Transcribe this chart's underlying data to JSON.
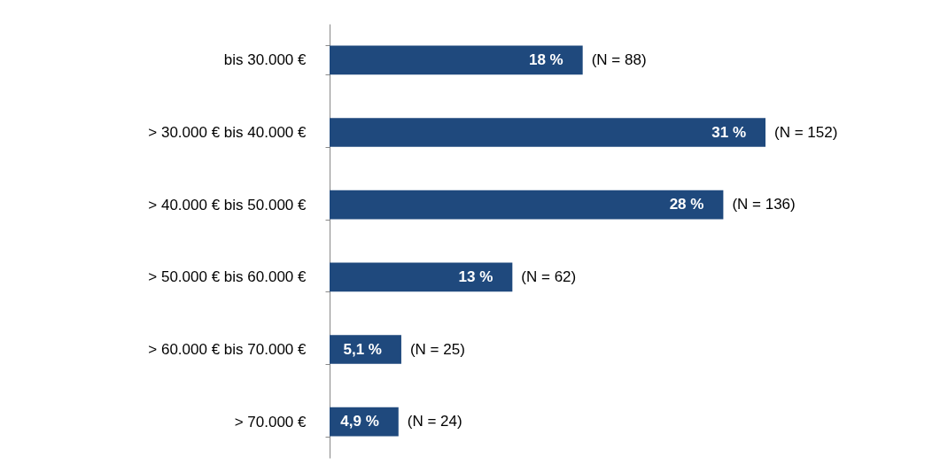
{
  "chart_data": {
    "type": "bar",
    "orientation": "horizontal",
    "categories": [
      "bis 30.000 €",
      "> 30.000 € bis 40.000 €",
      "> 40.000 € bis 50.000 €",
      "> 50.000 € bis 60.000 €",
      "> 60.000 € bis 70.000 €",
      "> 70.000 €"
    ],
    "values": [
      18,
      31,
      28,
      13,
      5.1,
      4.9
    ],
    "value_labels": [
      "18 %",
      "31 %",
      "28 %",
      "13 %",
      "5,1 %",
      "4,9 %"
    ],
    "color": "#1f497d",
    "tick_labels": "y",
    "grid": false,
    "annotations": [
      {
        "text": "(N = 88)",
        "x": 18,
        "y": "bis 30.000 €"
      },
      {
        "text": "(N = 152)",
        "x": 31,
        "y": "> 30.000 € bis 40.000 €"
      },
      {
        "text": "(N = 136)",
        "x": 28,
        "y": "> 40.000 € bis 50.000 €"
      },
      {
        "text": "(N = 62)",
        "x": 13,
        "y": "> 50.000 € bis 60.000 €"
      },
      {
        "text": "(N = 25)",
        "x": 5.1,
        "y": "> 60.000 € bis 70.000 €"
      },
      {
        "text": "(N = 24)",
        "x": 4.9,
        "y": "> 70.000 €"
      }
    ]
  }
}
